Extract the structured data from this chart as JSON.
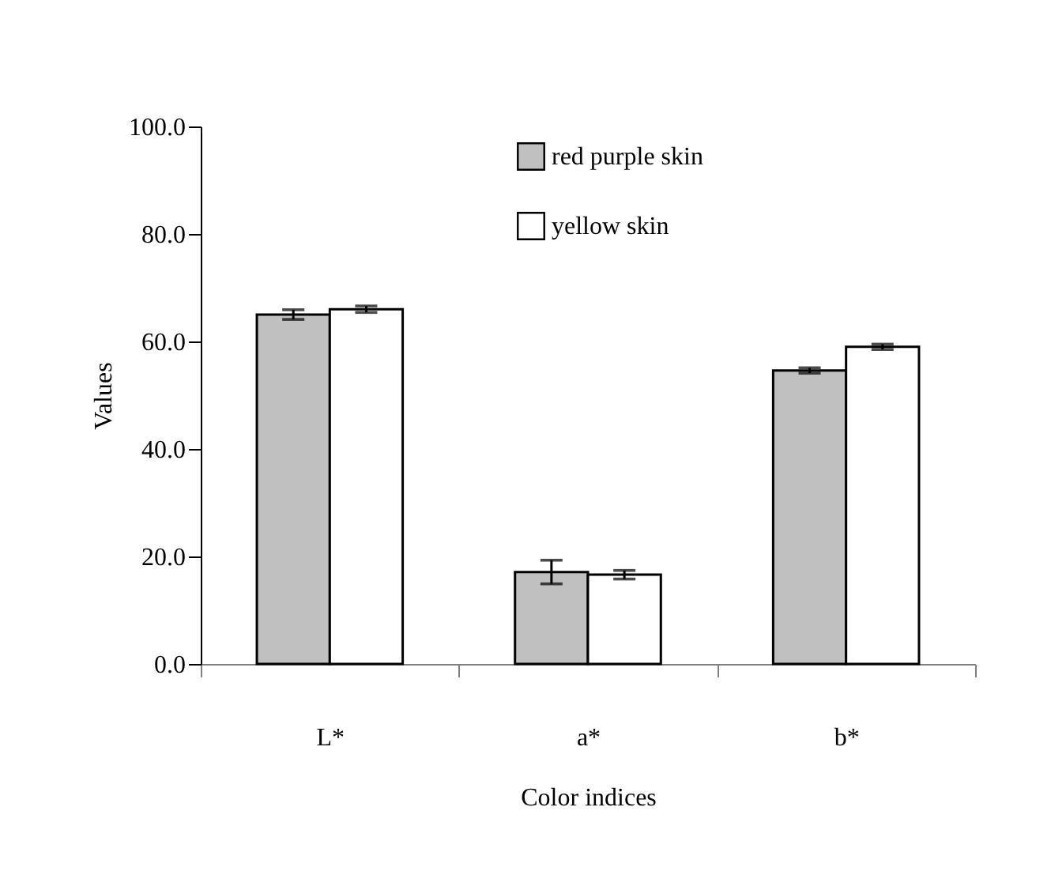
{
  "chart_data": {
    "type": "bar",
    "xlabel": "Color indices",
    "ylabel": "Values",
    "categories": [
      "L*",
      "a*",
      "b*"
    ],
    "series": [
      {
        "name": "red purple skin",
        "color": "#c0c0c0",
        "values": [
          65.0,
          17.1,
          54.6
        ],
        "errors": [
          0.9,
          2.2,
          0.5
        ]
      },
      {
        "name": "yellow skin",
        "color": "#ffffff",
        "values": [
          66.0,
          16.6,
          59.0
        ],
        "errors": [
          0.6,
          0.8,
          0.5
        ]
      }
    ],
    "ylim": [
      0,
      100
    ],
    "yticks": [
      {
        "value": 0,
        "label": "0.0"
      },
      {
        "value": 20,
        "label": "20.0"
      },
      {
        "value": 40,
        "label": "40.0"
      },
      {
        "value": 60,
        "label": "60.0"
      },
      {
        "value": 80,
        "label": "80.0"
      },
      {
        "value": 100,
        "label": "100.0"
      }
    ],
    "grid": false,
    "legend": "top"
  }
}
